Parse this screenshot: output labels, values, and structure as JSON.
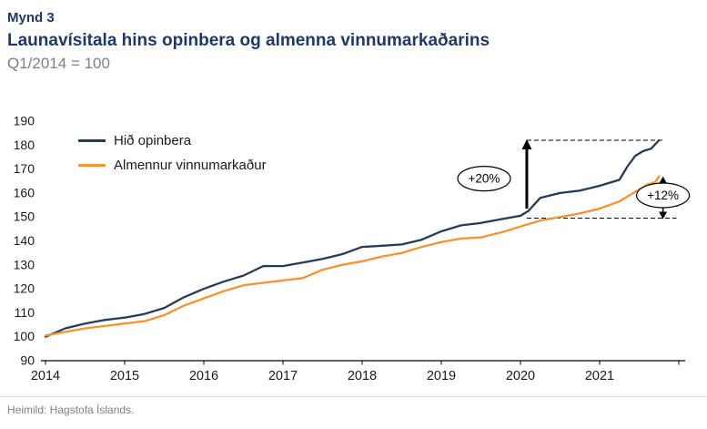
{
  "header": {
    "figure_label": "Mynd 3",
    "title": "Launavísitala hins opinbera og almenna vinnumarkaðarins",
    "subtitle": "Q1/2014 = 100"
  },
  "footer": {
    "source": "Heimild: Hagstofa Íslands."
  },
  "colors": {
    "title_navy": "#1f3864",
    "public_line": "#273a56",
    "private_line": "#f59333",
    "subtitle_gray": "#808080",
    "source_gray": "#7f7f7f",
    "axis_black": "#000000"
  },
  "chart_data": {
    "type": "line",
    "title": "Launavísitala hins opinbera og almenna vinnumarkaðarins",
    "subtitle": "Q1/2014 = 100",
    "xlabel": "",
    "ylabel": "",
    "x_range": [
      2014,
      2022
    ],
    "y_range": [
      90,
      190
    ],
    "y_ticks": [
      90,
      100,
      110,
      120,
      130,
      140,
      150,
      160,
      170,
      180,
      190
    ],
    "x_ticks": [
      2014,
      2015,
      2016,
      2017,
      2018,
      2019,
      2020,
      2021
    ],
    "grid": false,
    "legend_position": "top-left",
    "series": [
      {
        "name": "Hið opinbera",
        "color": "#273a56",
        "points": [
          [
            2014.0,
            100
          ],
          [
            2014.25,
            103.5
          ],
          [
            2014.5,
            105.5
          ],
          [
            2014.75,
            107
          ],
          [
            2015.0,
            108
          ],
          [
            2015.25,
            109.5
          ],
          [
            2015.5,
            112
          ],
          [
            2015.75,
            116.5
          ],
          [
            2016.0,
            120
          ],
          [
            2016.25,
            123
          ],
          [
            2016.5,
            125.5
          ],
          [
            2016.75,
            129.5
          ],
          [
            2017.0,
            129.5
          ],
          [
            2017.25,
            131
          ],
          [
            2017.5,
            132.5
          ],
          [
            2017.75,
            134.5
          ],
          [
            2018.0,
            137.5
          ],
          [
            2018.25,
            138
          ],
          [
            2018.5,
            138.5
          ],
          [
            2018.75,
            140.5
          ],
          [
            2019.0,
            144
          ],
          [
            2019.25,
            146.5
          ],
          [
            2019.5,
            147.5
          ],
          [
            2019.75,
            149
          ],
          [
            2020.0,
            150.5
          ],
          [
            2020.1,
            152.5
          ],
          [
            2020.25,
            158
          ],
          [
            2020.5,
            160
          ],
          [
            2020.75,
            161
          ],
          [
            2021.0,
            163
          ],
          [
            2021.25,
            165.5
          ],
          [
            2021.35,
            171
          ],
          [
            2021.45,
            175.5
          ],
          [
            2021.55,
            177.5
          ],
          [
            2021.65,
            178.5
          ],
          [
            2021.75,
            182
          ]
        ]
      },
      {
        "name": "Almennur vinnumarkaður",
        "color": "#f59333",
        "points": [
          [
            2014.0,
            100.5
          ],
          [
            2014.25,
            102
          ],
          [
            2014.5,
            103.5
          ],
          [
            2014.75,
            104.5
          ],
          [
            2015.0,
            105.5
          ],
          [
            2015.25,
            106.5
          ],
          [
            2015.5,
            109
          ],
          [
            2015.75,
            113
          ],
          [
            2016.0,
            116
          ],
          [
            2016.25,
            119
          ],
          [
            2016.5,
            121.5
          ],
          [
            2016.75,
            122.5
          ],
          [
            2017.0,
            123.5
          ],
          [
            2017.25,
            124.5
          ],
          [
            2017.5,
            128
          ],
          [
            2017.75,
            130
          ],
          [
            2018.0,
            131.5
          ],
          [
            2018.25,
            133.5
          ],
          [
            2018.5,
            135
          ],
          [
            2018.75,
            137.5
          ],
          [
            2019.0,
            139.5
          ],
          [
            2019.25,
            141
          ],
          [
            2019.5,
            141.5
          ],
          [
            2019.75,
            143.5
          ],
          [
            2020.0,
            146
          ],
          [
            2020.25,
            148.5
          ],
          [
            2020.5,
            150
          ],
          [
            2020.75,
            151.5
          ],
          [
            2021.0,
            153.5
          ],
          [
            2021.25,
            156.5
          ],
          [
            2021.4,
            159.5
          ],
          [
            2021.5,
            161.5
          ],
          [
            2021.6,
            163.5
          ],
          [
            2021.7,
            164.5
          ],
          [
            2021.75,
            167
          ]
        ]
      }
    ],
    "annotations": [
      {
        "type": "dashed-line",
        "y": 182,
        "x1": 2020.08,
        "x2": 2021.8
      },
      {
        "type": "dashed-line",
        "y": 149.5,
        "x1": 2020.08,
        "x2": 2021.97
      },
      {
        "type": "arrow",
        "x": 2020.08,
        "from": 153.5,
        "to": 182,
        "heads": "up"
      },
      {
        "type": "arrow",
        "x": 2021.8,
        "from": 149.5,
        "to": 166.5,
        "heads": "both"
      },
      {
        "type": "ellipse-label",
        "text": "+20%",
        "x": 2019.54,
        "y": 166
      },
      {
        "type": "ellipse-label",
        "text": "+12%",
        "x": 2021.8,
        "y": 159
      }
    ]
  }
}
